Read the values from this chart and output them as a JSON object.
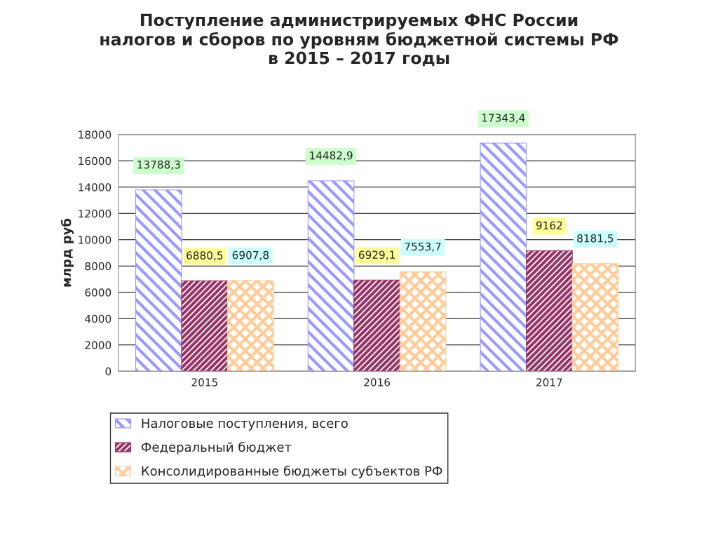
{
  "chart_data": {
    "type": "bar",
    "title": "Поступление администрируемых ФНС России\nналогов и сборов по уровням бюджетной системы РФ\nв 2015 – 2017 годы",
    "ylabel": "млрд руб",
    "categories": [
      "2015",
      "2016",
      "2017"
    ],
    "series": [
      {
        "name": "Налоговые поступления, всего",
        "color": "#9999ff",
        "values": [
          13788.3,
          14482.9,
          17343.4
        ],
        "value_labels": [
          "13788,3",
          "14482,9",
          "17343,4"
        ]
      },
      {
        "name": "Федеральный бюджет",
        "color": "#993366",
        "values": [
          6880.5,
          6929.1,
          9162
        ],
        "value_labels": [
          "6880,5",
          "6929,1",
          "9162"
        ]
      },
      {
        "name": "Консолидированные бюджеты субъектов РФ",
        "color": "#ffcc99",
        "values": [
          6907.8,
          7553.7,
          8181.5
        ],
        "value_labels": [
          "6907,8",
          "7553,7",
          "8181,5"
        ]
      }
    ],
    "ylim": [
      0,
      18000
    ],
    "yticks": [
      0,
      2000,
      4000,
      6000,
      8000,
      10000,
      12000,
      14000,
      16000,
      18000
    ],
    "grid": "y",
    "legend": "bottom"
  }
}
